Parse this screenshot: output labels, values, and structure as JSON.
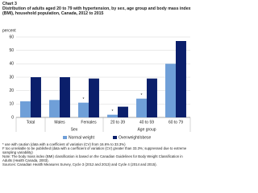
{
  "chart_data": {
    "type": "bar",
    "chart_label": "Chart 3",
    "title": "Distribution of adults aged 20 to 79 with hypertension, by sex, age group and body mass index (BMI), household population, Canada, 2012 to 2015",
    "y_label": "percent",
    "categories": [
      "Total",
      "Males",
      "Females",
      "20 to 39",
      "40 to 59",
      "60 to 79"
    ],
    "groups": [
      {
        "label": null,
        "count": 1
      },
      {
        "label": "Sex",
        "count": 2
      },
      {
        "label": "Age group",
        "count": 3
      }
    ],
    "series": [
      {
        "name": "Normal weight",
        "color": "#6f9fd8",
        "values": [
          12,
          13,
          11,
          2,
          14,
          40
        ],
        "value_labels": [
          null,
          null,
          "*",
          "*",
          "*",
          null
        ]
      },
      {
        "name": "Overweight/obese",
        "color": "#0b1f6b",
        "values": [
          30,
          30,
          29,
          8,
          29,
          57
        ]
      }
    ],
    "ylim": [
      0,
      60
    ],
    "yticks": [
      0,
      10,
      20,
      30,
      40,
      50,
      60
    ],
    "grid": true,
    "notes": [
      "* use with caution (data with a coefficient of variation (CV) from 16.6% to 33.3%)",
      "F too unreliable to be published (data with a coefficient of variation (CV) greater than 33.3%; suppressed due to extreme sampling variability)",
      "Note: The body mass index (BMI) classification is based on the Canadian Guidelines for Body Weight Classification in Adults (Health Canada, 2003).",
      "Sources: Canadian Health Measures Survey, Cycle 3 (2012 and 2013) and Cycle 4 (2014 and 2015)."
    ]
  }
}
